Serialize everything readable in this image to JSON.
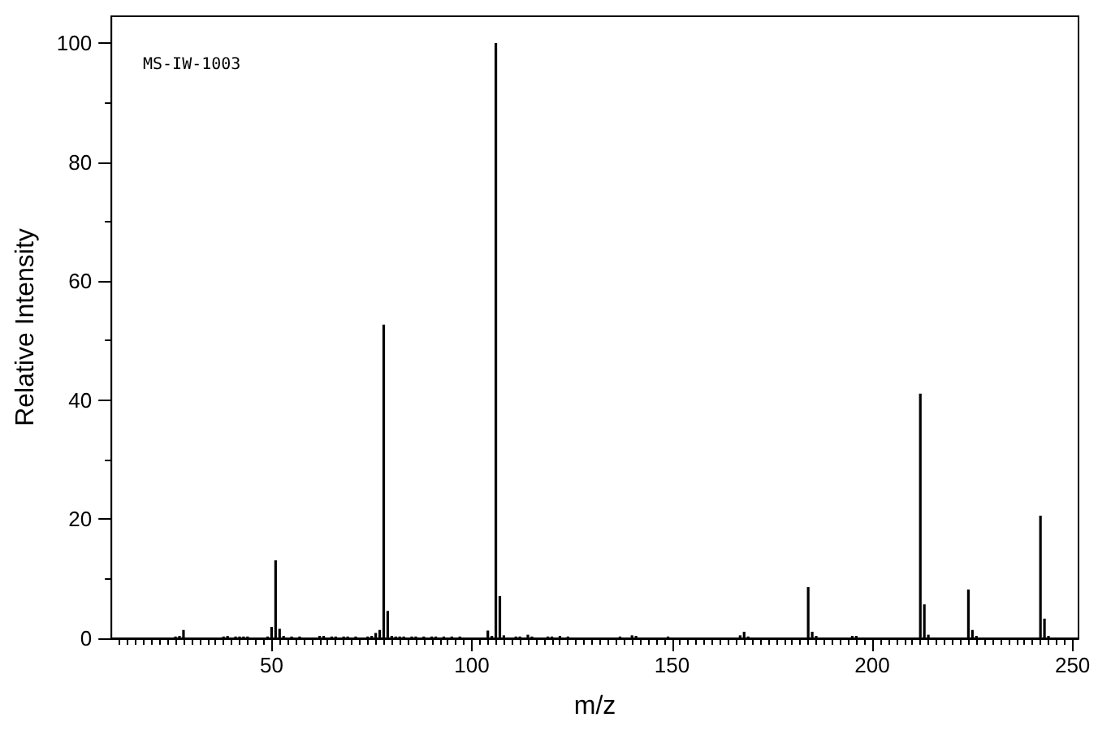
{
  "chart_data": {
    "type": "bar",
    "xlabel": "m/z",
    "ylabel": "Relative Intensity",
    "annotations": [
      "MS-IW-1003"
    ],
    "color": "#000000",
    "x": [
      26,
      27,
      28,
      38,
      39,
      41,
      42,
      43,
      44,
      49,
      50,
      51,
      52,
      53,
      55,
      57,
      62,
      63,
      65,
      66,
      68,
      69,
      71,
      74,
      75,
      76,
      77,
      78,
      79,
      80,
      81,
      82,
      83,
      85,
      86,
      88,
      90,
      91,
      93,
      95,
      97,
      104,
      105,
      106,
      107,
      108,
      111,
      112,
      114,
      115,
      119,
      120,
      122,
      124,
      137,
      140,
      141,
      149,
      167,
      168,
      169,
      184,
      185,
      186,
      195,
      196,
      212,
      213,
      214,
      224,
      225,
      226,
      242,
      243,
      244
    ],
    "values": [
      0.3,
      0.4,
      1.4,
      0.3,
      0.4,
      0.3,
      0.3,
      0.3,
      0.3,
      0.3,
      1.9,
      13.1,
      1.6,
      0.4,
      0.3,
      0.3,
      0.4,
      0.4,
      0.3,
      0.3,
      0.3,
      0.3,
      0.3,
      0.3,
      0.4,
      0.9,
      1.4,
      52.7,
      4.6,
      0.4,
      0.3,
      0.3,
      0.3,
      0.3,
      0.3,
      0.3,
      0.3,
      0.3,
      0.3,
      0.3,
      0.3,
      1.3,
      0.4,
      100,
      7.1,
      0.5,
      0.3,
      0.3,
      0.6,
      0.3,
      0.3,
      0.3,
      0.4,
      0.3,
      0.3,
      0.5,
      0.4,
      0.3,
      0.5,
      1.1,
      0.3,
      8.6,
      1.1,
      0.4,
      0.4,
      0.4,
      41.1,
      5.7,
      0.6,
      8.2,
      1.4,
      0.4,
      20.6,
      3.3,
      0.4
    ],
    "xlim": [
      10,
      251.5
    ],
    "ylim": [
      0,
      104.5
    ],
    "xticks": [
      {
        "value": 12,
        "label": null
      },
      {
        "value": 14,
        "label": null
      },
      {
        "value": 16,
        "label": null
      },
      {
        "value": 18,
        "label": null
      },
      {
        "value": 20,
        "label": null
      },
      {
        "value": 22,
        "label": null
      },
      {
        "value": 24,
        "label": null
      },
      {
        "value": 26,
        "label": null
      },
      {
        "value": 28,
        "label": null
      },
      {
        "value": 30,
        "label": null
      },
      {
        "value": 32,
        "label": null
      },
      {
        "value": 34,
        "label": null
      },
      {
        "value": 36,
        "label": null
      },
      {
        "value": 38,
        "label": null
      },
      {
        "value": 40,
        "label": null
      },
      {
        "value": 42,
        "label": null
      },
      {
        "value": 44,
        "label": null
      },
      {
        "value": 46,
        "label": null
      },
      {
        "value": 48,
        "label": null
      },
      50,
      {
        "value": 52,
        "label": null
      },
      {
        "value": 54,
        "label": null
      },
      {
        "value": 56,
        "label": null
      },
      {
        "value": 58,
        "label": null
      },
      {
        "value": 60,
        "label": null
      },
      {
        "value": 62,
        "label": null
      },
      {
        "value": 64,
        "label": null
      },
      {
        "value": 66,
        "label": null
      },
      {
        "value": 68,
        "label": null
      },
      {
        "value": 70,
        "label": null
      },
      {
        "value": 72,
        "label": null
      },
      {
        "value": 74,
        "label": null
      },
      {
        "value": 76,
        "label": null
      },
      {
        "value": 78,
        "label": null
      },
      {
        "value": 80,
        "label": null
      },
      {
        "value": 82,
        "label": null
      },
      {
        "value": 84,
        "label": null
      },
      {
        "value": 86,
        "label": null
      },
      {
        "value": 88,
        "label": null
      },
      {
        "value": 90,
        "label": null
      },
      {
        "value": 92,
        "label": null
      },
      {
        "value": 94,
        "label": null
      },
      {
        "value": 96,
        "label": null
      },
      {
        "value": 98,
        "label": null
      },
      100,
      {
        "value": 102,
        "label": null
      },
      {
        "value": 104,
        "label": null
      },
      {
        "value": 106,
        "label": null
      },
      {
        "value": 108,
        "label": null
      },
      {
        "value": 110,
        "label": null
      },
      {
        "value": 112,
        "label": null
      },
      {
        "value": 114,
        "label": null
      },
      {
        "value": 116,
        "label": null
      },
      {
        "value": 118,
        "label": null
      },
      {
        "value": 120,
        "label": null
      },
      {
        "value": 122,
        "label": null
      },
      {
        "value": 124,
        "label": null
      },
      {
        "value": 126,
        "label": null
      },
      {
        "value": 128,
        "label": null
      },
      {
        "value": 130,
        "label": null
      },
      {
        "value": 132,
        "label": null
      },
      {
        "value": 134,
        "label": null
      },
      {
        "value": 136,
        "label": null
      },
      {
        "value": 138,
        "label": null
      },
      {
        "value": 140,
        "label": null
      },
      {
        "value": 142,
        "label": null
      },
      {
        "value": 144,
        "label": null
      },
      {
        "value": 146,
        "label": null
      },
      {
        "value": 148,
        "label": null
      },
      150,
      {
        "value": 152,
        "label": null
      },
      {
        "value": 154,
        "label": null
      },
      {
        "value": 156,
        "label": null
      },
      {
        "value": 158,
        "label": null
      },
      {
        "value": 160,
        "label": null
      },
      {
        "value": 162,
        "label": null
      },
      {
        "value": 164,
        "label": null
      },
      {
        "value": 166,
        "label": null
      },
      {
        "value": 168,
        "label": null
      },
      {
        "value": 170,
        "label": null
      },
      {
        "value": 172,
        "label": null
      },
      {
        "value": 174,
        "label": null
      },
      {
        "value": 176,
        "label": null
      },
      {
        "value": 178,
        "label": null
      },
      {
        "value": 180,
        "label": null
      },
      {
        "value": 182,
        "label": null
      },
      {
        "value": 184,
        "label": null
      },
      {
        "value": 186,
        "label": null
      },
      {
        "value": 188,
        "label": null
      },
      {
        "value": 190,
        "label": null
      },
      {
        "value": 192,
        "label": null
      },
      {
        "value": 194,
        "label": null
      },
      {
        "value": 196,
        "label": null
      },
      {
        "value": 198,
        "label": null
      },
      200,
      {
        "value": 202,
        "label": null
      },
      {
        "value": 204,
        "label": null
      },
      {
        "value": 206,
        "label": null
      },
      {
        "value": 208,
        "label": null
      },
      {
        "value": 210,
        "label": null
      },
      {
        "value": 212,
        "label": null
      },
      {
        "value": 214,
        "label": null
      },
      {
        "value": 216,
        "label": null
      },
      {
        "value": 218,
        "label": null
      },
      {
        "value": 220,
        "label": null
      },
      {
        "value": 222,
        "label": null
      },
      {
        "value": 224,
        "label": null
      },
      {
        "value": 226,
        "label": null
      },
      {
        "value": 228,
        "label": null
      },
      {
        "value": 230,
        "label": null
      },
      {
        "value": 232,
        "label": null
      },
      {
        "value": 234,
        "label": null
      },
      {
        "value": 236,
        "label": null
      },
      {
        "value": 238,
        "label": null
      },
      {
        "value": 240,
        "label": null
      },
      {
        "value": 242,
        "label": null
      },
      {
        "value": 244,
        "label": null
      },
      {
        "value": 246,
        "label": null
      },
      {
        "value": 248,
        "label": null
      },
      250
    ],
    "yticks": [
      0,
      {
        "value": 10,
        "label": null
      },
      20,
      {
        "value": 30,
        "label": null
      },
      40,
      {
        "value": 50,
        "label": null
      },
      60,
      {
        "value": 70,
        "label": null
      },
      80,
      {
        "value": 90,
        "label": null
      },
      100
    ]
  }
}
